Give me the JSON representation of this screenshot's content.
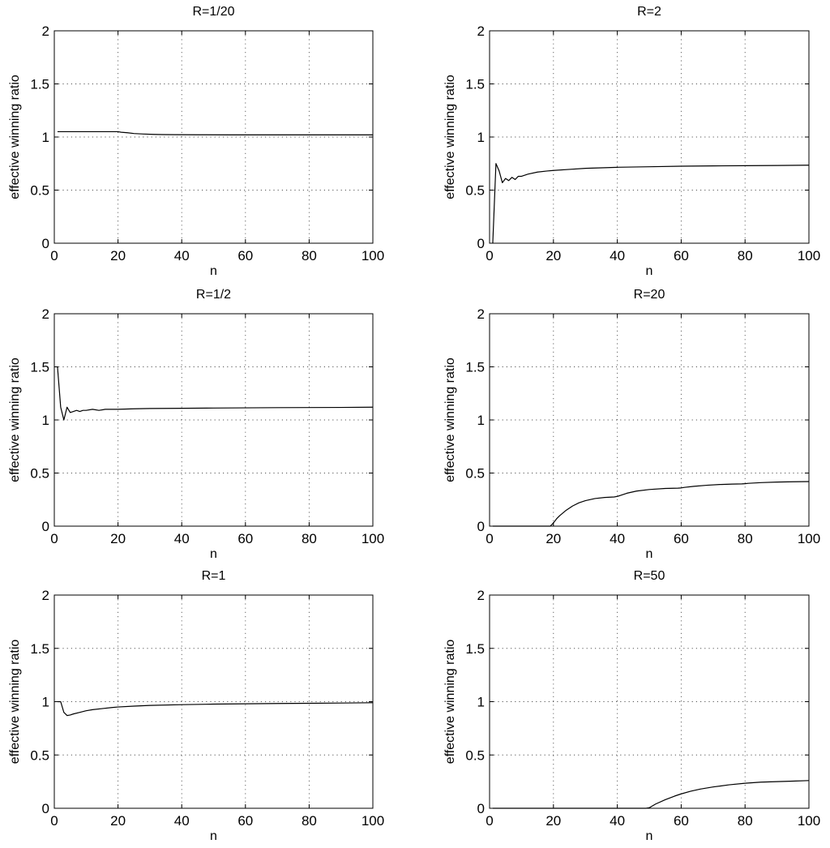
{
  "chart_data": [
    {
      "type": "line",
      "title": "R=1/20",
      "xlabel": "n",
      "ylabel": "effective winning ratio",
      "xlim": [
        0,
        100
      ],
      "ylim": [
        0,
        2
      ],
      "xticks": [
        "0",
        "20",
        "40",
        "60",
        "80",
        "100"
      ],
      "yticks": [
        "0",
        "0.5",
        "1",
        "1.5",
        "2"
      ],
      "grid": true,
      "series": [
        {
          "x": [
            1,
            5,
            10,
            15,
            19,
            20,
            21,
            23,
            25,
            28,
            31,
            34,
            38,
            45,
            55,
            70,
            85,
            100
          ],
          "y": [
            1.05,
            1.05,
            1.05,
            1.05,
            1.05,
            1.05,
            1.045,
            1.04,
            1.033,
            1.028,
            1.025,
            1.023,
            1.022,
            1.021,
            1.02,
            1.02,
            1.02,
            1.02
          ]
        }
      ]
    },
    {
      "type": "line",
      "title": "R=2",
      "xlabel": "n",
      "ylabel": "effective winning ratio",
      "xlim": [
        0,
        100
      ],
      "ylim": [
        0,
        2
      ],
      "xticks": [
        "0",
        "20",
        "40",
        "60",
        "80",
        "100"
      ],
      "yticks": [
        "0",
        "0.5",
        "1",
        "1.5",
        "2"
      ],
      "grid": true,
      "series": [
        {
          "x": [
            1,
            2,
            3,
            4,
            5,
            6,
            7,
            8,
            9,
            10,
            12,
            15,
            18,
            20,
            25,
            30,
            40,
            50,
            60,
            70,
            80,
            90,
            100
          ],
          "y": [
            0,
            0.75,
            0.68,
            0.57,
            0.61,
            0.59,
            0.62,
            0.6,
            0.63,
            0.63,
            0.65,
            0.67,
            0.68,
            0.685,
            0.695,
            0.705,
            0.715,
            0.72,
            0.725,
            0.728,
            0.73,
            0.732,
            0.735
          ]
        }
      ]
    },
    {
      "type": "line",
      "title": "R=1/2",
      "xlabel": "n",
      "ylabel": "effective winning ratio",
      "xlim": [
        0,
        100
      ],
      "ylim": [
        0,
        2
      ],
      "xticks": [
        "0",
        "20",
        "40",
        "60",
        "80",
        "100"
      ],
      "yticks": [
        "0",
        "0.5",
        "1",
        "1.5",
        "2"
      ],
      "grid": true,
      "series": [
        {
          "x": [
            1,
            2,
            3,
            4,
            5,
            6,
            7,
            8,
            9,
            10,
            12,
            14,
            16,
            18,
            20,
            25,
            30,
            40,
            50,
            60,
            70,
            80,
            90,
            100
          ],
          "y": [
            1.5,
            1.12,
            1.0,
            1.12,
            1.07,
            1.08,
            1.09,
            1.08,
            1.09,
            1.09,
            1.1,
            1.09,
            1.1,
            1.1,
            1.1,
            1.105,
            1.108,
            1.11,
            1.112,
            1.114,
            1.116,
            1.117,
            1.118,
            1.12
          ]
        }
      ]
    },
    {
      "type": "line",
      "title": "R=20",
      "xlabel": "n",
      "ylabel": "effective winning ratio",
      "xlim": [
        0,
        100
      ],
      "ylim": [
        0,
        2
      ],
      "xticks": [
        "0",
        "20",
        "40",
        "60",
        "80",
        "100"
      ],
      "yticks": [
        "0",
        "0.5",
        "1",
        "1.5",
        "2"
      ],
      "grid": true,
      "series": [
        {
          "x": [
            1,
            10,
            19,
            20,
            21,
            22,
            24,
            26,
            28,
            30,
            33,
            36,
            39,
            40,
            41,
            43,
            46,
            50,
            55,
            59,
            60,
            61,
            64,
            68,
            72,
            76,
            79,
            80,
            81,
            85,
            90,
            95,
            100
          ],
          "y": [
            0,
            0,
            0,
            0.03,
            0.07,
            0.1,
            0.15,
            0.19,
            0.22,
            0.24,
            0.26,
            0.27,
            0.275,
            0.28,
            0.29,
            0.31,
            0.33,
            0.345,
            0.355,
            0.358,
            0.36,
            0.365,
            0.375,
            0.385,
            0.392,
            0.396,
            0.398,
            0.4,
            0.403,
            0.41,
            0.415,
            0.418,
            0.42
          ]
        }
      ]
    },
    {
      "type": "line",
      "title": "R=1",
      "xlabel": "n",
      "ylabel": "effective winning ratio",
      "xlim": [
        0,
        100
      ],
      "ylim": [
        0,
        2
      ],
      "xticks": [
        "0",
        "20",
        "40",
        "60",
        "80",
        "100"
      ],
      "yticks": [
        "0",
        "0.5",
        "1",
        "1.5",
        "2"
      ],
      "grid": true,
      "series": [
        {
          "x": [
            1,
            2,
            3,
            4,
            5,
            6,
            8,
            10,
            12,
            15,
            18,
            20,
            25,
            30,
            40,
            50,
            60,
            70,
            80,
            90,
            100
          ],
          "y": [
            1.0,
            1.0,
            0.9,
            0.87,
            0.875,
            0.885,
            0.9,
            0.915,
            0.925,
            0.935,
            0.945,
            0.95,
            0.958,
            0.965,
            0.972,
            0.977,
            0.98,
            0.983,
            0.985,
            0.987,
            0.99
          ]
        }
      ]
    },
    {
      "type": "line",
      "title": "R=50",
      "xlabel": "n",
      "ylabel": "effective winning ratio",
      "xlim": [
        0,
        100
      ],
      "ylim": [
        0,
        2
      ],
      "xticks": [
        "0",
        "20",
        "40",
        "60",
        "80",
        "100"
      ],
      "yticks": [
        "0",
        "0.5",
        "1",
        "1.5",
        "2"
      ],
      "grid": true,
      "series": [
        {
          "x": [
            1,
            20,
            40,
            49,
            50,
            52,
            55,
            58,
            60,
            63,
            66,
            70,
            75,
            80,
            85,
            90,
            95,
            100
          ],
          "y": [
            0,
            0,
            0,
            0,
            0.005,
            0.04,
            0.08,
            0.115,
            0.135,
            0.16,
            0.18,
            0.2,
            0.22,
            0.235,
            0.245,
            0.25,
            0.255,
            0.26
          ]
        }
      ]
    }
  ]
}
